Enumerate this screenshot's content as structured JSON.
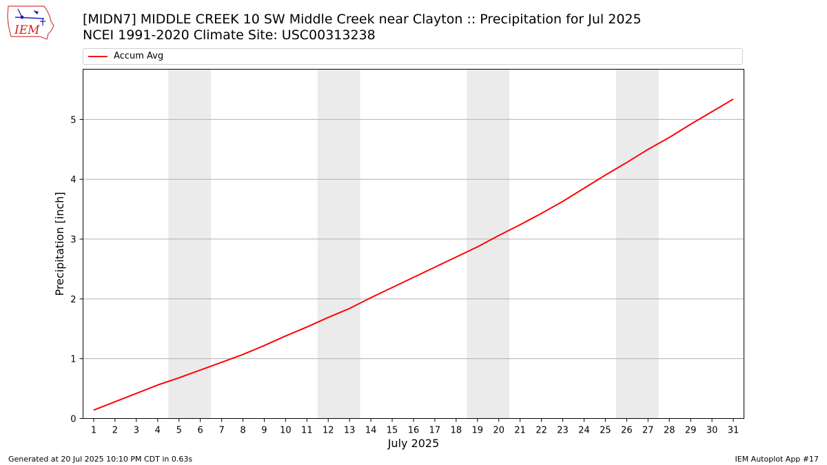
{
  "header": {
    "title_line1": "[MIDN7] MIDDLE CREEK 10 SW Middle Creek near Clayton :: Precipitation for Jul 2025",
    "title_line2": "NCEI 1991-2020 Climate Site: USC00313238"
  },
  "logo": {
    "text": "IEM",
    "icon": "iem-iowa-logo"
  },
  "footer": {
    "left": "Generated at 20 Jul 2025 10:10 PM CDT in 0.63s",
    "right": "IEM Autoplot App #17"
  },
  "chart_data": {
    "type": "line",
    "xlabel": "July 2025",
    "ylabel": "Precipitation [inch]",
    "x": [
      1,
      2,
      3,
      4,
      5,
      6,
      7,
      8,
      9,
      10,
      11,
      12,
      13,
      14,
      15,
      16,
      17,
      18,
      19,
      20,
      21,
      22,
      23,
      24,
      25,
      26,
      27,
      28,
      29,
      30,
      31
    ],
    "xlim": [
      0.5,
      31.5
    ],
    "ylim": [
      0,
      5.84
    ],
    "yticks": [
      0,
      1,
      2,
      3,
      4,
      5
    ],
    "grid": "y-major",
    "legend_placement": "top",
    "weekend_shading": [
      [
        4.5,
        6.5
      ],
      [
        11.5,
        13.5
      ],
      [
        18.5,
        20.5
      ],
      [
        25.5,
        27.5
      ]
    ],
    "series": [
      {
        "name": "Accum Avg",
        "color": "#ff0000",
        "values": [
          0.14,
          0.28,
          0.42,
          0.56,
          0.68,
          0.81,
          0.94,
          1.07,
          1.22,
          1.38,
          1.53,
          1.69,
          1.84,
          2.02,
          2.19,
          2.36,
          2.53,
          2.7,
          2.87,
          3.06,
          3.24,
          3.43,
          3.63,
          3.85,
          4.07,
          4.28,
          4.5,
          4.7,
          4.92,
          5.13,
          5.34
        ]
      }
    ]
  }
}
